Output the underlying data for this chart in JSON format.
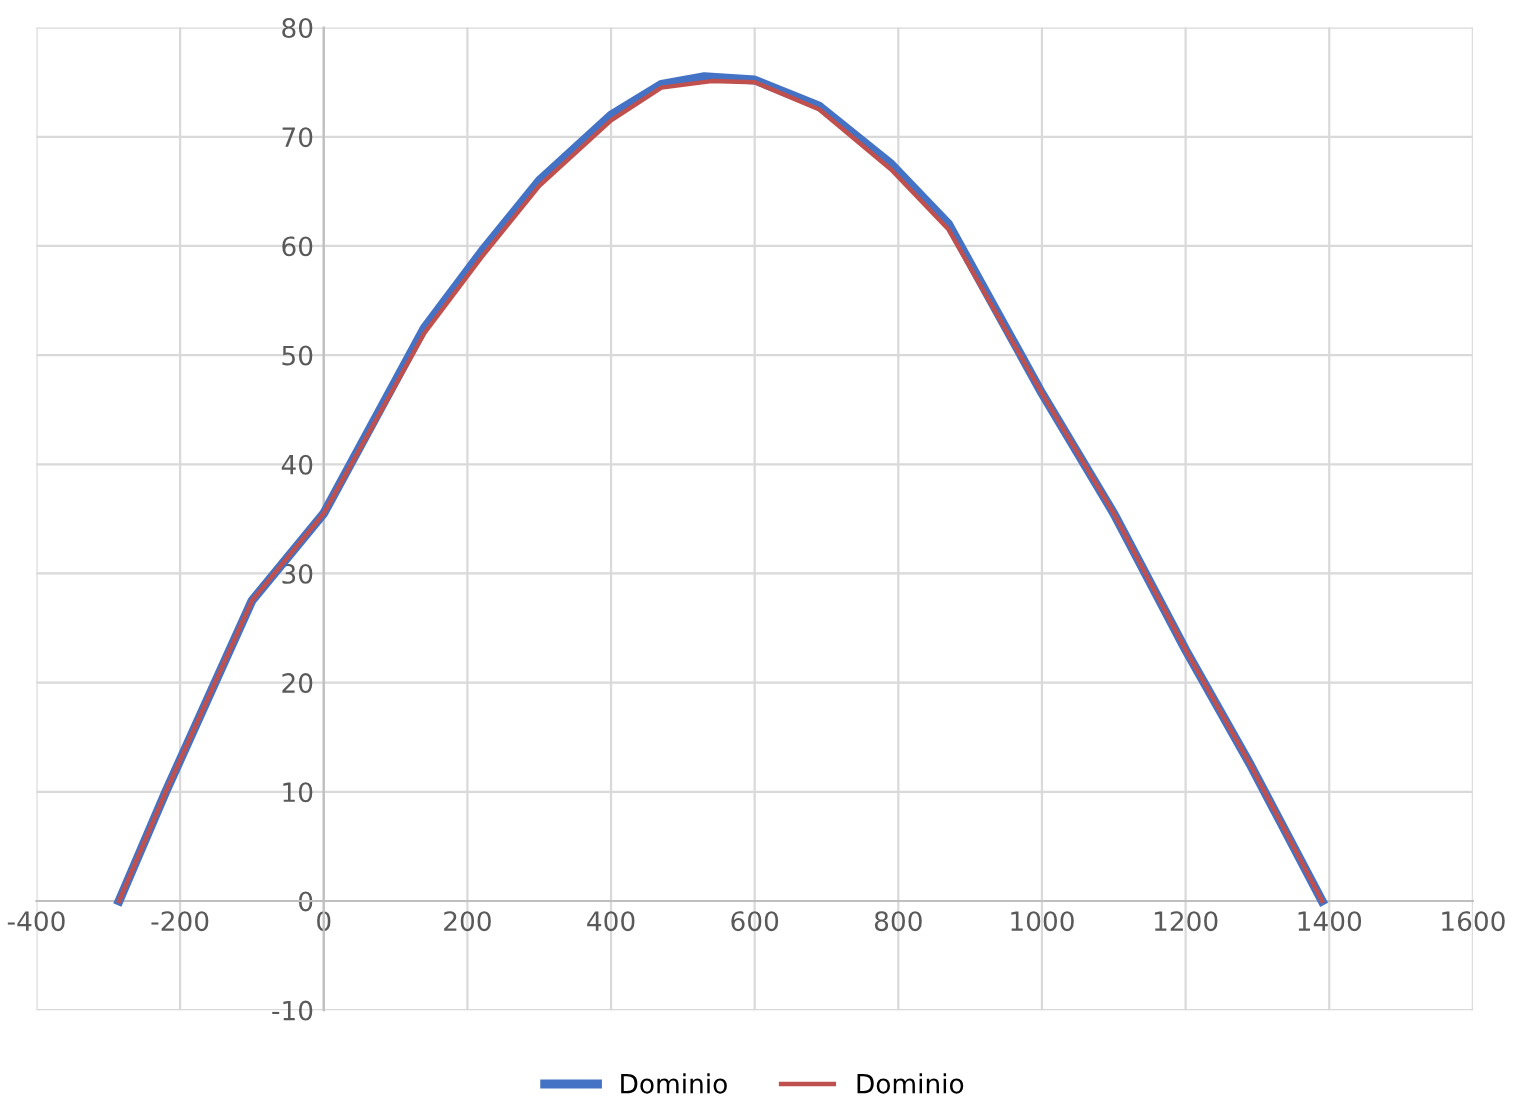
{
  "chart_data": {
    "type": "line",
    "x": [
      -285,
      -220,
      -100,
      0,
      140,
      220,
      300,
      400,
      470,
      530,
      600,
      690,
      790,
      870,
      1000,
      1100,
      1200,
      1290,
      1390
    ],
    "series": [
      {
        "name": "Dominio",
        "color": "#4472c4",
        "values": [
          0,
          10,
          27.5,
          35.5,
          52.5,
          59.5,
          66,
          72,
          74.8,
          75.5,
          75.2,
          72.8,
          67.5,
          62,
          46.5,
          35.5,
          23,
          12.5,
          0
        ]
      },
      {
        "name": "Dominio",
        "color": "#c0504d",
        "x": [
          -285,
          -220,
          -100,
          0,
          140,
          220,
          300,
          400,
          470,
          540,
          600,
          690,
          790,
          870,
          1000,
          1100,
          1200,
          1290,
          1390
        ],
        "values": [
          0,
          10,
          27.5,
          35.5,
          52,
          59,
          65.5,
          71.5,
          74.5,
          75.1,
          75,
          72.5,
          67,
          61.5,
          46.5,
          35.5,
          23,
          12.5,
          0
        ]
      }
    ],
    "xlim": [
      -400,
      1600
    ],
    "xticks": [
      -400,
      -200,
      0,
      200,
      400,
      600,
      800,
      1000,
      1200,
      1400,
      1600
    ],
    "ylim": [
      -10,
      80
    ],
    "yticks": [
      -10,
      0,
      10,
      20,
      30,
      40,
      50,
      60,
      70,
      80
    ],
    "grid": true,
    "legend": "bottom",
    "marker": "none",
    "line_style": "solid"
  }
}
